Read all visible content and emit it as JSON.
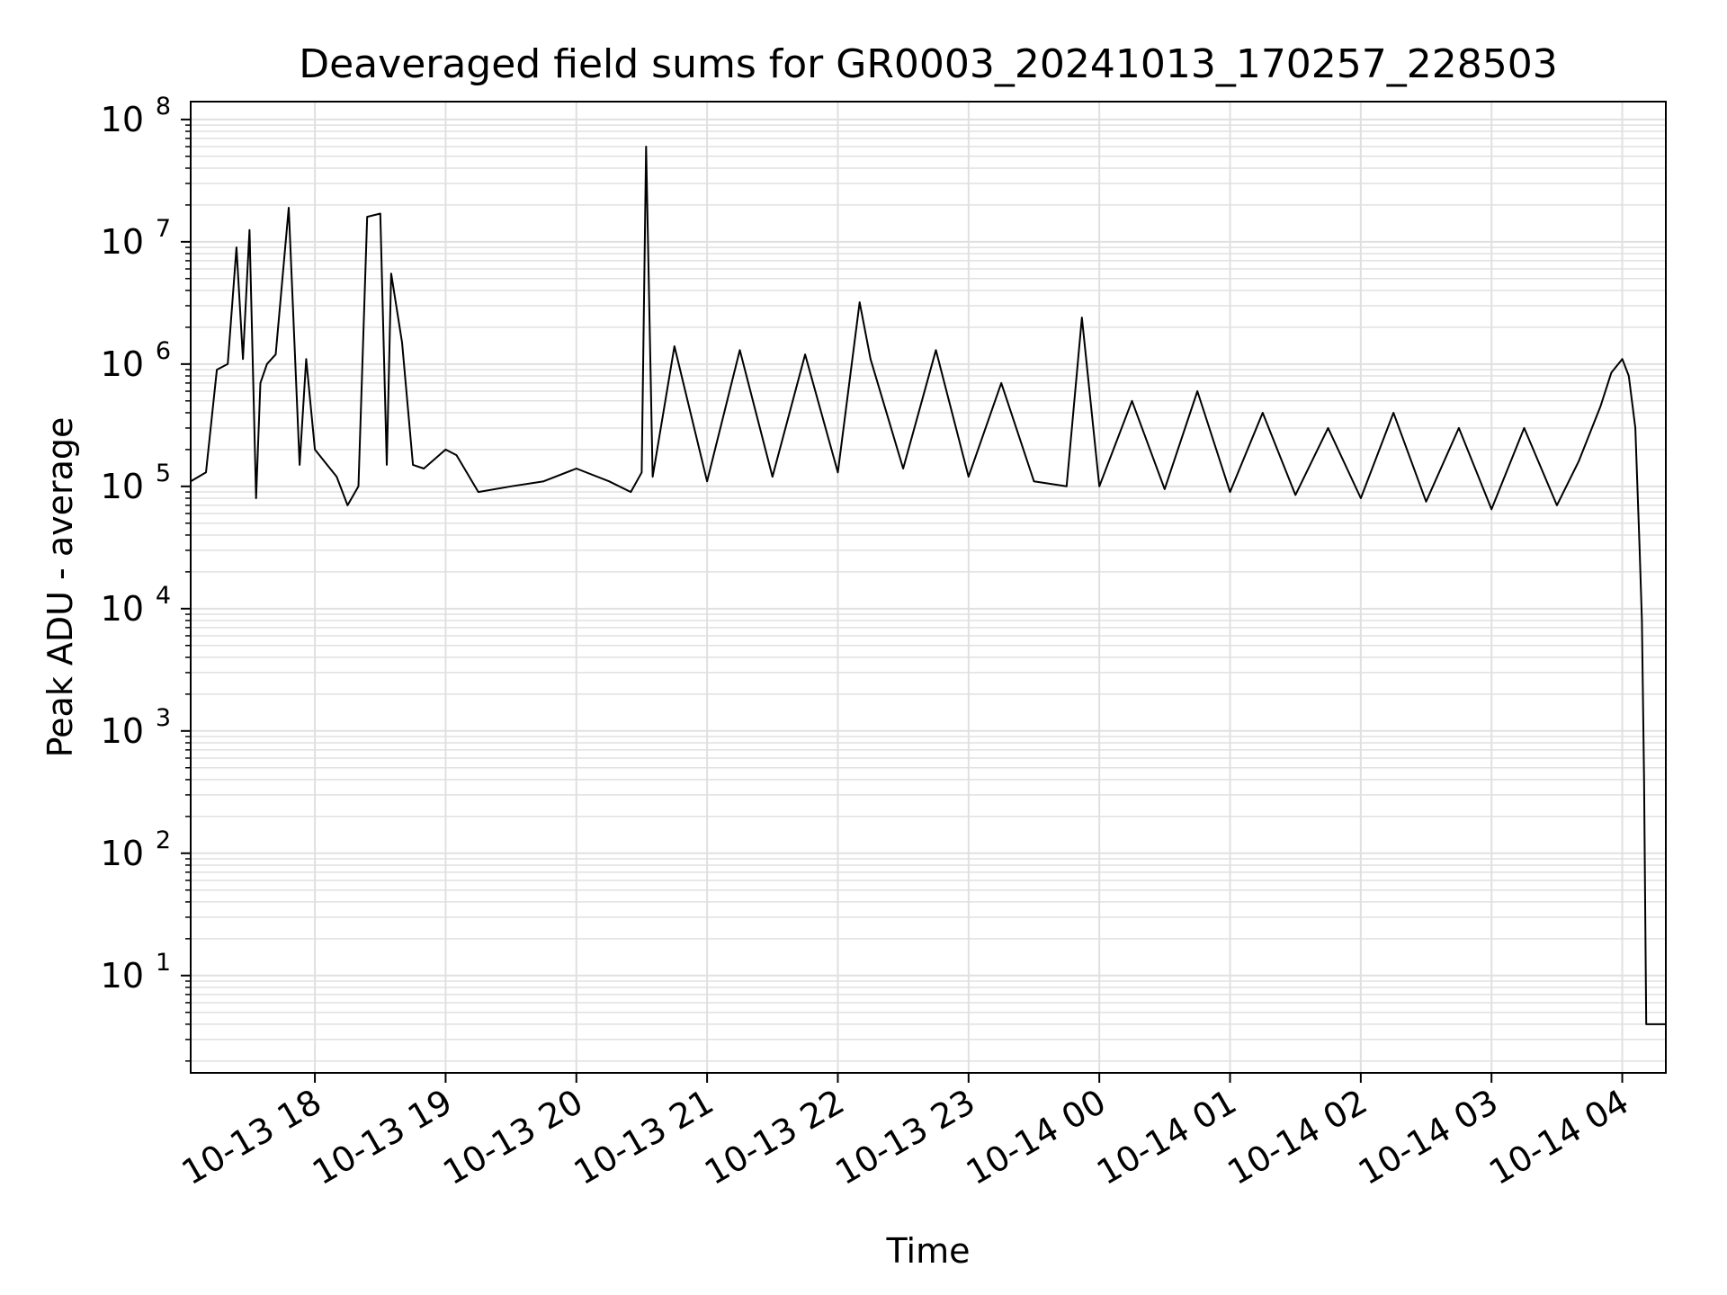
{
  "chart_data": {
    "type": "line",
    "title": "Deaveraged field sums for GR0003_20241013_170257_228503",
    "xlabel": "Time",
    "ylabel": "Peak ADU - average",
    "yscale": "log",
    "grid": true,
    "grid_minor": true,
    "line_color": "#000000",
    "grid_color": "#e0e0e0",
    "xlim": [
      "2024-10-13 17:03",
      "2024-10-14 04:20"
    ],
    "ylim": [
      1.6,
      140000000
    ],
    "x_ticks": [
      {
        "t": "2024-10-13 18:00",
        "label": "10-13 18"
      },
      {
        "t": "2024-10-13 19:00",
        "label": "10-13 19"
      },
      {
        "t": "2024-10-13 20:00",
        "label": "10-13 20"
      },
      {
        "t": "2024-10-13 21:00",
        "label": "10-13 21"
      },
      {
        "t": "2024-10-13 22:00",
        "label": "10-13 22"
      },
      {
        "t": "2024-10-13 23:00",
        "label": "10-13 23"
      },
      {
        "t": "2024-10-14 00:00",
        "label": "10-14 00"
      },
      {
        "t": "2024-10-14 01:00",
        "label": "10-14 01"
      },
      {
        "t": "2024-10-14 02:00",
        "label": "10-14 02"
      },
      {
        "t": "2024-10-14 03:00",
        "label": "10-14 03"
      },
      {
        "t": "2024-10-14 04:00",
        "label": "10-14 04"
      }
    ],
    "y_ticks": [
      {
        "value": 10,
        "base": "10",
        "exp": "1"
      },
      {
        "value": 100,
        "base": "10",
        "exp": "2"
      },
      {
        "value": 1000,
        "base": "10",
        "exp": "3"
      },
      {
        "value": 10000,
        "base": "10",
        "exp": "4"
      },
      {
        "value": 100000,
        "base": "10",
        "exp": "5"
      },
      {
        "value": 1000000,
        "base": "10",
        "exp": "6"
      },
      {
        "value": 10000000,
        "base": "10",
        "exp": "7"
      },
      {
        "value": 100000000,
        "base": "10",
        "exp": "8"
      }
    ],
    "series": [
      {
        "x": [
          "2024-10-13 17:03",
          "2024-10-13 17:10",
          "2024-10-13 17:15",
          "2024-10-13 17:20",
          "2024-10-13 17:24",
          "2024-10-13 17:27",
          "2024-10-13 17:30",
          "2024-10-13 17:33",
          "2024-10-13 17:35",
          "2024-10-13 17:38",
          "2024-10-13 17:42",
          "2024-10-13 17:48",
          "2024-10-13 17:53",
          "2024-10-13 17:56",
          "2024-10-13 18:00",
          "2024-10-13 18:10",
          "2024-10-13 18:15",
          "2024-10-13 18:20",
          "2024-10-13 18:24",
          "2024-10-13 18:30",
          "2024-10-13 18:33",
          "2024-10-13 18:35",
          "2024-10-13 18:40",
          "2024-10-13 18:45",
          "2024-10-13 18:50",
          "2024-10-13 19:00",
          "2024-10-13 19:05",
          "2024-10-13 19:15",
          "2024-10-13 19:30",
          "2024-10-13 19:45",
          "2024-10-13 20:00",
          "2024-10-13 20:15",
          "2024-10-13 20:25",
          "2024-10-13 20:30",
          "2024-10-13 20:32",
          "2024-10-13 20:35",
          "2024-10-13 20:45",
          "2024-10-13 21:00",
          "2024-10-13 21:15",
          "2024-10-13 21:30",
          "2024-10-13 21:45",
          "2024-10-13 22:00",
          "2024-10-13 22:10",
          "2024-10-13 22:15",
          "2024-10-13 22:30",
          "2024-10-13 22:45",
          "2024-10-13 23:00",
          "2024-10-13 23:15",
          "2024-10-13 23:30",
          "2024-10-13 23:45",
          "2024-10-13 23:52",
          "2024-10-14 00:00",
          "2024-10-14 00:15",
          "2024-10-14 00:30",
          "2024-10-14 00:45",
          "2024-10-14 01:00",
          "2024-10-14 01:15",
          "2024-10-14 01:30",
          "2024-10-14 01:45",
          "2024-10-14 02:00",
          "2024-10-14 02:15",
          "2024-10-14 02:30",
          "2024-10-14 02:45",
          "2024-10-14 03:00",
          "2024-10-14 03:15",
          "2024-10-14 03:30",
          "2024-10-14 03:40",
          "2024-10-14 03:50",
          "2024-10-14 03:55",
          "2024-10-14 04:00",
          "2024-10-14 04:03",
          "2024-10-14 04:06",
          "2024-10-14 04:08",
          "2024-10-14 04:09",
          "2024-10-14 04:10",
          "2024-10-14 04:11",
          "2024-10-14 04:12",
          "2024-10-14 04:20"
        ],
        "values": [
          110000,
          130000,
          900000,
          1000000,
          9000000,
          1100000,
          12500000,
          80000,
          700000,
          1000000,
          1200000,
          19000000,
          150000,
          1100000,
          200000,
          120000,
          70000,
          100000,
          16000000,
          17000000,
          150000,
          5500000,
          1500000,
          150000,
          140000,
          200000,
          180000,
          90000,
          100000,
          110000,
          140000,
          110000,
          90000,
          130000,
          60000000,
          120000,
          1400000,
          110000,
          1300000,
          120000,
          1200000,
          130000,
          3200000,
          1100000,
          140000,
          1300000,
          120000,
          700000,
          110000,
          100000,
          2400000,
          100000,
          500000,
          95000,
          600000,
          90000,
          400000,
          85000,
          300000,
          80000,
          400000,
          75000,
          300000,
          65000,
          300000,
          70000,
          160000,
          450000,
          850000,
          1100000,
          800000,
          300000,
          30000,
          8000,
          400,
          4,
          4,
          4
        ]
      }
    ]
  }
}
